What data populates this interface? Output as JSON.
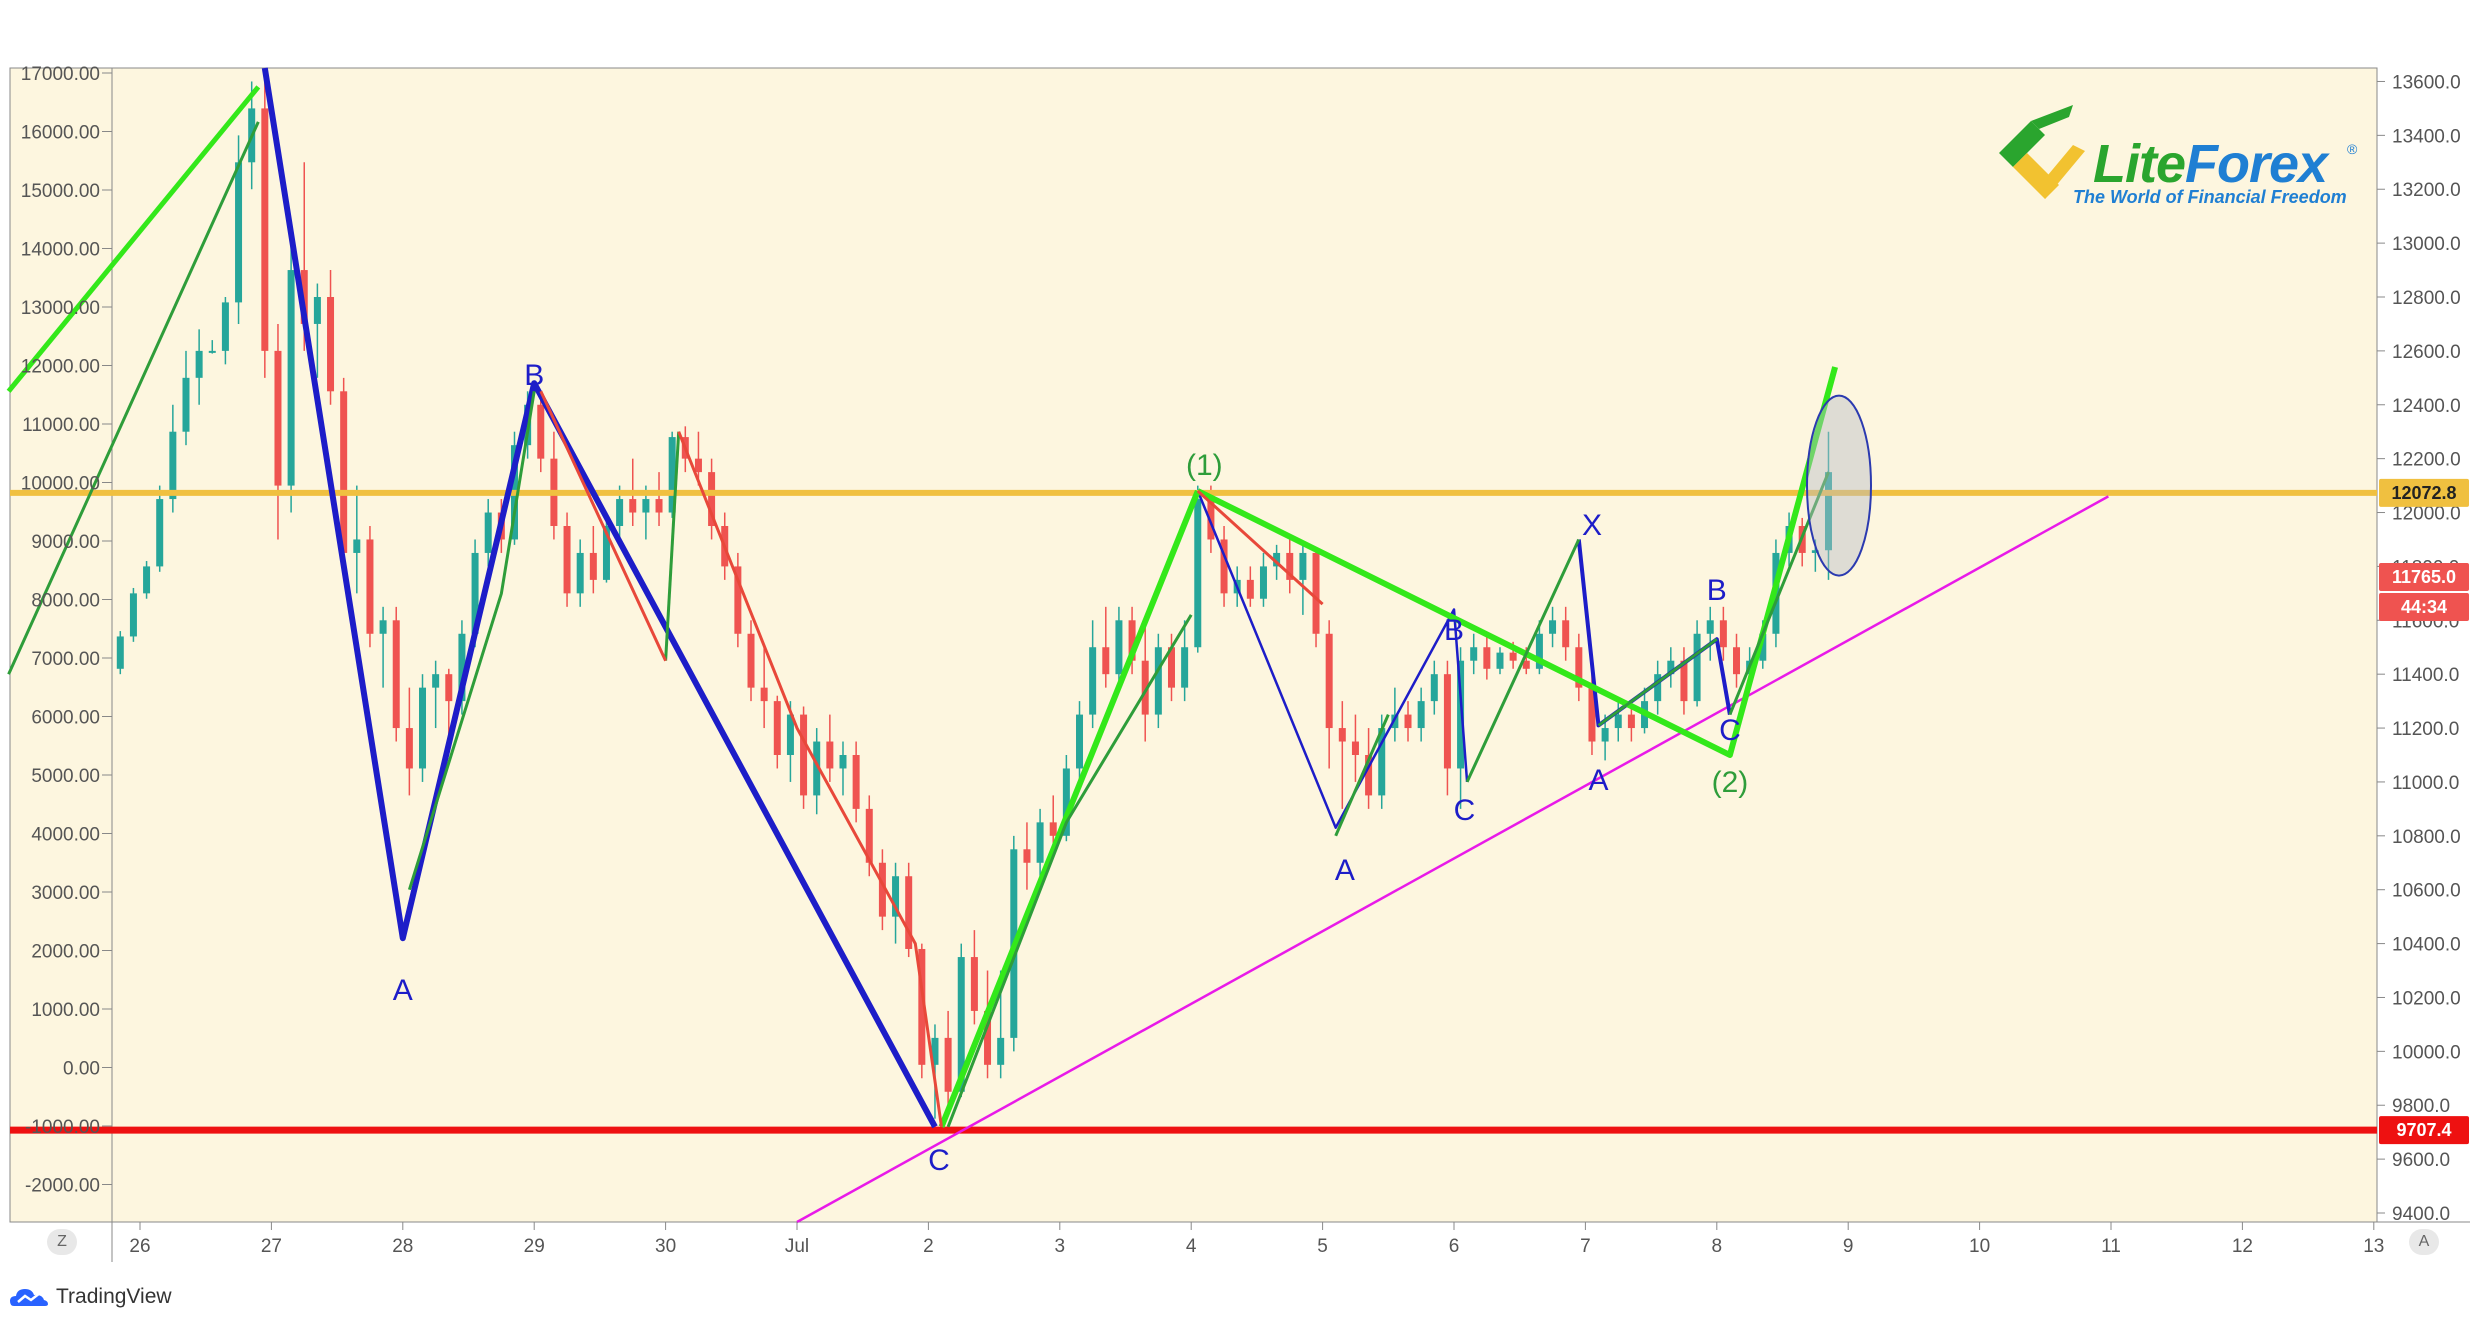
{
  "brand": {
    "name_part1": "Lite",
    "name_part2": "Forex",
    "registered": "®",
    "tagline": "The World of Financial Freedom",
    "platform": "TradingView"
  },
  "colors": {
    "background": "#fdf6df",
    "bull_candle": "#26a69a",
    "bear_candle": "#ef5350",
    "wave_blue": "#1d1dc8",
    "wave_green_light": "#33e81a",
    "wave_green_dark": "#2e9d3a",
    "wave_red": "#e8483a",
    "trendline_magenta": "#e81ae8",
    "resistance_yellow": "#f0c040",
    "support_red": "#ee1111",
    "circle_marker": "#2b3ab0"
  },
  "axis_buttons": {
    "left": "Z",
    "right": "A"
  },
  "chart_data": {
    "type": "candlestick",
    "left_axis_ticks": [
      "17000.00",
      "16000.00",
      "15000.00",
      "14000.00",
      "13000.00",
      "12000.00",
      "11000.00",
      "10000.00",
      "9000.00",
      "8000.00",
      "7000.00",
      "6000.00",
      "5000.00",
      "4000.00",
      "3000.00",
      "2000.00",
      "1000.00",
      "0.00",
      "-1000.00",
      "-2000.00"
    ],
    "right_axis_ticks": [
      "13600.0",
      "13400.0",
      "13200.0",
      "13000.0",
      "12800.0",
      "12600.0",
      "12400.0",
      "12200.0",
      "12000.0",
      "11800.0",
      "11600.0",
      "11400.0",
      "11200.0",
      "11000.0",
      "10800.0",
      "10600.0",
      "10400.0",
      "10200.0",
      "10000.0",
      "9800.0",
      "9600.0",
      "9400.0"
    ],
    "x_ticks": [
      "26",
      "27",
      "28",
      "29",
      "30",
      "Jul",
      "2",
      "3",
      "4",
      "5",
      "6",
      "7",
      "8",
      "9",
      "10",
      "11",
      "12",
      "13"
    ],
    "price_tags": {
      "resistance": "12072.8",
      "last_price": "11765.0",
      "countdown": "44:34",
      "support": "9707.4"
    },
    "levels": {
      "resistance": 12072.8,
      "support": 9707.4
    },
    "wave_labels": {
      "a1": "A",
      "b1": "B",
      "c1": "C",
      "w1": "(1)",
      "x": "X",
      "a2": "A",
      "b2": "B",
      "c2": "C",
      "a3": "A",
      "b3": "B",
      "c3": "C",
      "w2": "(2)"
    },
    "candles": [
      {
        "day": 25.75,
        "o": 11400,
        "h": 11450,
        "l": 11330,
        "c": 11420
      },
      {
        "day": 25.85,
        "o": 11420,
        "h": 11560,
        "l": 11400,
        "c": 11540
      },
      {
        "day": 25.95,
        "o": 11540,
        "h": 11720,
        "l": 11520,
        "c": 11700
      },
      {
        "day": 26.05,
        "o": 11700,
        "h": 11820,
        "l": 11680,
        "c": 11800
      },
      {
        "day": 26.15,
        "o": 11800,
        "h": 12100,
        "l": 11780,
        "c": 12050
      },
      {
        "day": 26.25,
        "o": 12050,
        "h": 12400,
        "l": 12000,
        "c": 12300
      },
      {
        "day": 26.35,
        "o": 12300,
        "h": 12600,
        "l": 12250,
        "c": 12500
      },
      {
        "day": 26.45,
        "o": 12500,
        "h": 12680,
        "l": 12400,
        "c": 12600
      },
      {
        "day": 26.55,
        "o": 12600,
        "h": 12640,
        "l": 12590,
        "c": 12600
      },
      {
        "day": 26.65,
        "o": 12600,
        "h": 12800,
        "l": 12550,
        "c": 12780
      },
      {
        "day": 26.75,
        "o": 12780,
        "h": 13400,
        "l": 12700,
        "c": 13300
      },
      {
        "day": 26.85,
        "o": 13300,
        "h": 13600,
        "l": 13200,
        "c": 13500
      },
      {
        "day": 26.95,
        "o": 13500,
        "h": 13650,
        "l": 12500,
        "c": 12600
      },
      {
        "day": 27.05,
        "o": 12600,
        "h": 12700,
        "l": 11900,
        "c": 12100
      },
      {
        "day": 27.15,
        "o": 12100,
        "h": 13000,
        "l": 12000,
        "c": 12900
      },
      {
        "day": 27.25,
        "o": 12900,
        "h": 13300,
        "l": 12600,
        "c": 12700
      },
      {
        "day": 27.35,
        "o": 12700,
        "h": 12850,
        "l": 12500,
        "c": 12800
      },
      {
        "day": 27.45,
        "o": 12800,
        "h": 12900,
        "l": 12400,
        "c": 12450
      },
      {
        "day": 27.55,
        "o": 12450,
        "h": 12500,
        "l": 11800,
        "c": 11850
      },
      {
        "day": 27.65,
        "o": 11850,
        "h": 12100,
        "l": 11700,
        "c": 11900
      },
      {
        "day": 27.75,
        "o": 11900,
        "h": 11950,
        "l": 11500,
        "c": 11550
      },
      {
        "day": 27.85,
        "o": 11550,
        "h": 11650,
        "l": 11350,
        "c": 11600
      },
      {
        "day": 27.95,
        "o": 11600,
        "h": 11650,
        "l": 11150,
        "c": 11200
      },
      {
        "day": 28.05,
        "o": 11200,
        "h": 11350,
        "l": 10950,
        "c": 11050
      },
      {
        "day": 28.15,
        "o": 11050,
        "h": 11400,
        "l": 11000,
        "c": 11350
      },
      {
        "day": 28.25,
        "o": 11350,
        "h": 11450,
        "l": 11200,
        "c": 11400
      },
      {
        "day": 28.35,
        "o": 11400,
        "h": 11420,
        "l": 11150,
        "c": 11300
      },
      {
        "day": 28.45,
        "o": 11300,
        "h": 11600,
        "l": 11250,
        "c": 11550
      },
      {
        "day": 28.55,
        "o": 11550,
        "h": 11900,
        "l": 11500,
        "c": 11850
      },
      {
        "day": 28.65,
        "o": 11850,
        "h": 12050,
        "l": 11800,
        "c": 12000
      },
      {
        "day": 28.75,
        "o": 12000,
        "h": 12050,
        "l": 11850,
        "c": 11900
      },
      {
        "day": 28.85,
        "o": 11900,
        "h": 12300,
        "l": 11880,
        "c": 12250
      },
      {
        "day": 28.95,
        "o": 12250,
        "h": 12450,
        "l": 12200,
        "c": 12400
      },
      {
        "day": 29.05,
        "o": 12400,
        "h": 12450,
        "l": 12150,
        "c": 12200
      },
      {
        "day": 29.15,
        "o": 12200,
        "h": 12300,
        "l": 11900,
        "c": 11950
      },
      {
        "day": 29.25,
        "o": 11950,
        "h": 12000,
        "l": 11650,
        "c": 11700
      },
      {
        "day": 29.35,
        "o": 11700,
        "h": 11900,
        "l": 11650,
        "c": 11850
      },
      {
        "day": 29.45,
        "o": 11850,
        "h": 11950,
        "l": 11700,
        "c": 11750
      },
      {
        "day": 29.55,
        "o": 11750,
        "h": 12000,
        "l": 11740,
        "c": 11950
      },
      {
        "day": 29.65,
        "o": 11950,
        "h": 12100,
        "l": 11900,
        "c": 12050
      },
      {
        "day": 29.75,
        "o": 12050,
        "h": 12200,
        "l": 11950,
        "c": 12000
      },
      {
        "day": 29.85,
        "o": 12000,
        "h": 12100,
        "l": 11900,
        "c": 12050
      },
      {
        "day": 29.95,
        "o": 12050,
        "h": 12150,
        "l": 11950,
        "c": 12000
      },
      {
        "day": 30.05,
        "o": 12000,
        "h": 12300,
        "l": 11980,
        "c": 12280
      },
      {
        "day": 30.15,
        "o": 12280,
        "h": 12320,
        "l": 12150,
        "c": 12200
      },
      {
        "day": 30.25,
        "o": 12200,
        "h": 12300,
        "l": 12100,
        "c": 12150
      },
      {
        "day": 30.35,
        "o": 12150,
        "h": 12200,
        "l": 11900,
        "c": 11950
      },
      {
        "day": 30.45,
        "o": 11950,
        "h": 12000,
        "l": 11750,
        "c": 11800
      },
      {
        "day": 30.55,
        "o": 11800,
        "h": 11850,
        "l": 11500,
        "c": 11550
      },
      {
        "day": 30.65,
        "o": 11550,
        "h": 11600,
        "l": 11300,
        "c": 11350
      },
      {
        "day": 30.75,
        "o": 11350,
        "h": 11500,
        "l": 11200,
        "c": 11300
      },
      {
        "day": 30.85,
        "o": 11300,
        "h": 11320,
        "l": 11050,
        "c": 11100
      },
      {
        "day": 30.95,
        "o": 11100,
        "h": 11300,
        "l": 11000,
        "c": 11250
      },
      {
        "day": 31.05,
        "o": 11250,
        "h": 11280,
        "l": 10900,
        "c": 10950
      },
      {
        "day": 31.15,
        "o": 10950,
        "h": 11200,
        "l": 10880,
        "c": 11150
      },
      {
        "day": 31.25,
        "o": 11150,
        "h": 11250,
        "l": 11000,
        "c": 11050
      },
      {
        "day": 31.35,
        "o": 11050,
        "h": 11150,
        "l": 10950,
        "c": 11100
      },
      {
        "day": 31.45,
        "o": 11100,
        "h": 11150,
        "l": 10850,
        "c": 10900
      },
      {
        "day": 31.55,
        "o": 10900,
        "h": 10950,
        "l": 10650,
        "c": 10700
      },
      {
        "day": 31.65,
        "o": 10700,
        "h": 10750,
        "l": 10450,
        "c": 10500
      },
      {
        "day": 31.75,
        "o": 10500,
        "h": 10700,
        "l": 10400,
        "c": 10650
      },
      {
        "day": 31.85,
        "o": 10650,
        "h": 10700,
        "l": 10350,
        "c": 10380
      },
      {
        "day": 31.95,
        "o": 10380,
        "h": 10400,
        "l": 9900,
        "c": 9950
      },
      {
        "day": 32.05,
        "o": 9950,
        "h": 10100,
        "l": 9750,
        "c": 10050
      },
      {
        "day": 32.15,
        "o": 10050,
        "h": 10150,
        "l": 9800,
        "c": 9850
      },
      {
        "day": 32.25,
        "o": 9850,
        "h": 10400,
        "l": 9830,
        "c": 10350
      },
      {
        "day": 32.35,
        "o": 10350,
        "h": 10450,
        "l": 10100,
        "c": 10150
      },
      {
        "day": 32.45,
        "o": 10150,
        "h": 10300,
        "l": 9900,
        "c": 9950
      },
      {
        "day": 32.55,
        "o": 9950,
        "h": 10300,
        "l": 9900,
        "c": 10050
      },
      {
        "day": 32.65,
        "o": 10050,
        "h": 10800,
        "l": 10000,
        "c": 10750
      },
      {
        "day": 32.75,
        "o": 10750,
        "h": 10850,
        "l": 10600,
        "c": 10700
      },
      {
        "day": 32.85,
        "o": 10700,
        "h": 10900,
        "l": 10650,
        "c": 10850
      },
      {
        "day": 32.95,
        "o": 10850,
        "h": 10950,
        "l": 10750,
        "c": 10800
      },
      {
        "day": 33.05,
        "o": 10800,
        "h": 11100,
        "l": 10780,
        "c": 11050
      },
      {
        "day": 33.15,
        "o": 11050,
        "h": 11300,
        "l": 11000,
        "c": 11250
      },
      {
        "day": 33.25,
        "o": 11250,
        "h": 11600,
        "l": 11200,
        "c": 11500
      },
      {
        "day": 33.35,
        "o": 11500,
        "h": 11650,
        "l": 11350,
        "c": 11400
      },
      {
        "day": 33.45,
        "o": 11400,
        "h": 11650,
        "l": 11350,
        "c": 11600
      },
      {
        "day": 33.55,
        "o": 11600,
        "h": 11650,
        "l": 11400,
        "c": 11450
      },
      {
        "day": 33.65,
        "o": 11450,
        "h": 11600,
        "l": 11150,
        "c": 11250
      },
      {
        "day": 33.75,
        "o": 11250,
        "h": 11550,
        "l": 11200,
        "c": 11500
      },
      {
        "day": 33.85,
        "o": 11500,
        "h": 11550,
        "l": 11300,
        "c": 11350
      },
      {
        "day": 33.95,
        "o": 11350,
        "h": 11600,
        "l": 11300,
        "c": 11500
      },
      {
        "day": 34.05,
        "o": 11500,
        "h": 12100,
        "l": 11480,
        "c": 12050
      },
      {
        "day": 34.15,
        "o": 12050,
        "h": 12100,
        "l": 11850,
        "c": 11900
      },
      {
        "day": 34.25,
        "o": 11900,
        "h": 11950,
        "l": 11650,
        "c": 11700
      },
      {
        "day": 34.35,
        "o": 11700,
        "h": 11800,
        "l": 11650,
        "c": 11750
      },
      {
        "day": 34.45,
        "o": 11750,
        "h": 11800,
        "l": 11650,
        "c": 11680
      },
      {
        "day": 34.55,
        "o": 11680,
        "h": 11850,
        "l": 11650,
        "c": 11800
      },
      {
        "day": 34.65,
        "o": 11800,
        "h": 11880,
        "l": 11750,
        "c": 11850
      },
      {
        "day": 34.75,
        "o": 11850,
        "h": 11900,
        "l": 11700,
        "c": 11750
      },
      {
        "day": 34.85,
        "o": 11750,
        "h": 11880,
        "l": 11620,
        "c": 11850
      },
      {
        "day": 34.95,
        "o": 11850,
        "h": 11870,
        "l": 11500,
        "c": 11550
      },
      {
        "day": 35.05,
        "o": 11550,
        "h": 11600,
        "l": 11050,
        "c": 11200
      },
      {
        "day": 35.15,
        "o": 11200,
        "h": 11300,
        "l": 10900,
        "c": 11150
      },
      {
        "day": 35.25,
        "o": 11150,
        "h": 11250,
        "l": 11000,
        "c": 11100
      },
      {
        "day": 35.35,
        "o": 11100,
        "h": 11200,
        "l": 10900,
        "c": 10950
      },
      {
        "day": 35.45,
        "o": 10950,
        "h": 11250,
        "l": 10900,
        "c": 11200
      },
      {
        "day": 35.55,
        "o": 11200,
        "h": 11350,
        "l": 11150,
        "c": 11250
      },
      {
        "day": 35.65,
        "o": 11250,
        "h": 11300,
        "l": 11150,
        "c": 11200
      },
      {
        "day": 35.75,
        "o": 11200,
        "h": 11350,
        "l": 11150,
        "c": 11300
      },
      {
        "day": 35.85,
        "o": 11300,
        "h": 11450,
        "l": 11250,
        "c": 11400
      },
      {
        "day": 35.95,
        "o": 11400,
        "h": 11450,
        "l": 10950,
        "c": 11050
      },
      {
        "day": 36.05,
        "o": 11050,
        "h": 11500,
        "l": 10900,
        "c": 11450
      },
      {
        "day": 36.15,
        "o": 11450,
        "h": 11550,
        "l": 11400,
        "c": 11500
      },
      {
        "day": 36.25,
        "o": 11500,
        "h": 11550,
        "l": 11380,
        "c": 11420
      },
      {
        "day": 36.35,
        "o": 11420,
        "h": 11500,
        "l": 11400,
        "c": 11480
      },
      {
        "day": 36.45,
        "o": 11480,
        "h": 11520,
        "l": 11420,
        "c": 11450
      },
      {
        "day": 36.55,
        "o": 11450,
        "h": 11500,
        "l": 11400,
        "c": 11420
      },
      {
        "day": 36.65,
        "o": 11420,
        "h": 11600,
        "l": 11400,
        "c": 11550
      },
      {
        "day": 36.75,
        "o": 11550,
        "h": 11650,
        "l": 11500,
        "c": 11600
      },
      {
        "day": 36.85,
        "o": 11600,
        "h": 11650,
        "l": 11450,
        "c": 11500
      },
      {
        "day": 36.95,
        "o": 11500,
        "h": 11550,
        "l": 11300,
        "c": 11350
      },
      {
        "day": 37.05,
        "o": 11350,
        "h": 11400,
        "l": 11100,
        "c": 11150
      },
      {
        "day": 37.15,
        "o": 11150,
        "h": 11250,
        "l": 11080,
        "c": 11200
      },
      {
        "day": 37.25,
        "o": 11200,
        "h": 11300,
        "l": 11150,
        "c": 11250
      },
      {
        "day": 37.35,
        "o": 11250,
        "h": 11300,
        "l": 11150,
        "c": 11200
      },
      {
        "day": 37.45,
        "o": 11200,
        "h": 11350,
        "l": 11180,
        "c": 11300
      },
      {
        "day": 37.55,
        "o": 11300,
        "h": 11450,
        "l": 11250,
        "c": 11400
      },
      {
        "day": 37.65,
        "o": 11400,
        "h": 11500,
        "l": 11350,
        "c": 11450
      },
      {
        "day": 37.75,
        "o": 11450,
        "h": 11500,
        "l": 11250,
        "c": 11300
      },
      {
        "day": 37.85,
        "o": 11300,
        "h": 11600,
        "l": 11280,
        "c": 11550
      },
      {
        "day": 37.95,
        "o": 11550,
        "h": 11650,
        "l": 11450,
        "c": 11600
      },
      {
        "day": 38.05,
        "o": 11600,
        "h": 11650,
        "l": 11450,
        "c": 11500
      },
      {
        "day": 38.15,
        "o": 11500,
        "h": 11550,
        "l": 11350,
        "c": 11400
      },
      {
        "day": 38.25,
        "o": 11400,
        "h": 11500,
        "l": 11350,
        "c": 11450
      },
      {
        "day": 38.35,
        "o": 11450,
        "h": 11600,
        "l": 11420,
        "c": 11550
      },
      {
        "day": 38.45,
        "o": 11550,
        "h": 11900,
        "l": 11500,
        "c": 11850
      },
      {
        "day": 38.55,
        "o": 11850,
        "h": 12000,
        "l": 11800,
        "c": 11950
      },
      {
        "day": 38.65,
        "o": 11950,
        "h": 11980,
        "l": 11800,
        "c": 11850
      },
      {
        "day": 38.75,
        "o": 11850,
        "h": 11900,
        "l": 11780,
        "c": 11860
      },
      {
        "day": 38.85,
        "o": 11860,
        "h": 12300,
        "l": 11750,
        "c": 12150
      }
    ]
  }
}
